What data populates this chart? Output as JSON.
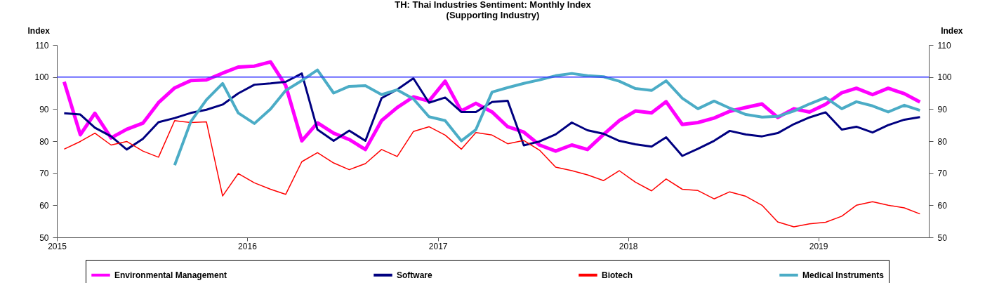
{
  "chart_data": {
    "type": "line",
    "title": "TH: Thai Industries Sentiment: Monthly Index\n(Supporting Industry)",
    "ylabel": "Index",
    "y2label": "Index",
    "x": [
      "2015-01-15",
      "2015-02-15",
      "2015-03-15",
      "2015-04-15",
      "2015-05-15",
      "2015-06-15",
      "2015-07-15",
      "2015-08-15",
      "2015-09-15",
      "2015-10-15",
      "2015-11-15",
      "2015-12-15",
      "2016-01-15",
      "2016-02-15",
      "2016-03-15",
      "2016-04-15",
      "2016-05-15",
      "2016-06-15",
      "2016-07-15",
      "2016-08-15",
      "2016-09-15",
      "2016-10-15",
      "2016-11-15",
      "2016-12-15",
      "2017-01-15",
      "2017-02-15",
      "2017-03-15",
      "2017-04-15",
      "2017-05-15",
      "2017-06-15",
      "2017-07-15",
      "2017-08-15",
      "2017-09-15",
      "2017-10-15",
      "2017-11-15",
      "2017-12-15",
      "2018-01-15",
      "2018-02-15",
      "2018-03-15",
      "2018-04-15",
      "2018-05-15",
      "2018-06-15",
      "2018-07-15",
      "2018-08-15",
      "2018-09-15",
      "2018-10-15",
      "2018-11-15",
      "2018-12-15",
      "2019-01-15",
      "2019-02-15",
      "2019-03-15",
      "2019-04-15",
      "2019-05-15",
      "2019-06-15",
      "2019-07-15"
    ],
    "series": [
      {
        "name": "Environmental Management",
        "color": "#ff00ff",
        "values": [
          98.5,
          82.0,
          88.7,
          81.0,
          83.7,
          85.6,
          92.0,
          96.6,
          98.9,
          99.1,
          101.2,
          103.1,
          103.4,
          104.7,
          97.4,
          80.1,
          85.7,
          82.5,
          80.5,
          77.4,
          86.4,
          90.5,
          93.8,
          92.5,
          98.7,
          89.4,
          91.8,
          89.1,
          84.5,
          82.8,
          78.8,
          76.9,
          78.8,
          77.4,
          82.1,
          86.4,
          89.4,
          88.8,
          92.3,
          85.2,
          85.8,
          87.2,
          89.3,
          90.5,
          91.6,
          87.4,
          90.1,
          89.1,
          91.5,
          95.1,
          96.5,
          94.5,
          96.5,
          94.8,
          92.2
        ]
      },
      {
        "name": "Software",
        "color": "#000080",
        "values": [
          88.7,
          88.3,
          84.2,
          81.5,
          77.4,
          80.7,
          85.9,
          87.2,
          88.8,
          89.8,
          91.4,
          94.9,
          97.6,
          98.0,
          98.5,
          101.1,
          83.6,
          80.1,
          83.3,
          80.1,
          93.4,
          96.1,
          99.6,
          92.0,
          93.6,
          89.1,
          89.1,
          92.2,
          92.6,
          78.7,
          79.9,
          82.1,
          85.8,
          83.4,
          82.3,
          80.1,
          79.0,
          78.3,
          81.2,
          75.4,
          77.6,
          80.1,
          83.2,
          82.1,
          81.5,
          82.5,
          85.3,
          87.4,
          89.0,
          83.6,
          84.5,
          82.7,
          85.0,
          86.7,
          87.5
        ]
      },
      {
        "name": "Biotech",
        "color": "#ff0000",
        "values": [
          77.5,
          79.9,
          82.5,
          78.8,
          79.9,
          76.9,
          75.0,
          86.4,
          85.8,
          86.0,
          62.9,
          69.9,
          67.0,
          65.0,
          63.4,
          73.6,
          76.4,
          73.2,
          71.1,
          73.0,
          77.4,
          75.2,
          83.0,
          84.5,
          81.9,
          77.5,
          82.7,
          81.9,
          79.2,
          80.2,
          77.2,
          71.9,
          70.8,
          69.5,
          67.7,
          70.8,
          67.2,
          64.5,
          68.2,
          65.0,
          64.6,
          62.0,
          64.2,
          62.8,
          60.0,
          54.8,
          53.3,
          54.2,
          54.7,
          56.6,
          60.0,
          61.1,
          60.0,
          59.2,
          57.3
        ]
      },
      {
        "name": "Medical Instruments",
        "color": "#4bacc6",
        "values": [
          null,
          null,
          null,
          null,
          null,
          null,
          null,
          72.5,
          86.1,
          92.9,
          98.0,
          88.8,
          85.5,
          90.0,
          95.8,
          98.9,
          102.2,
          95.0,
          97.1,
          97.3,
          94.5,
          96.0,
          93.2,
          87.6,
          86.4,
          80.1,
          83.6,
          95.3,
          96.7,
          98.0,
          99.1,
          100.4,
          101.1,
          100.4,
          100.1,
          98.7,
          96.4,
          95.8,
          98.8,
          93.4,
          90.1,
          92.5,
          90.3,
          88.3,
          87.5,
          87.7,
          89.4,
          91.6,
          93.6,
          90.1,
          92.3,
          91.0,
          89.1,
          91.2,
          89.6
        ]
      }
    ],
    "ref_lines": [
      {
        "axis": "y",
        "value": 100,
        "color": "#3333ff"
      }
    ],
    "xlim": [
      "2015-01-01",
      "2019-08-01"
    ],
    "xticks": [
      {
        "value": "2015-01-01",
        "label": "2015"
      },
      {
        "value": "2016-01-01",
        "label": "2016"
      },
      {
        "value": "2017-01-01",
        "label": "2017"
      },
      {
        "value": "2018-01-01",
        "label": "2018"
      },
      {
        "value": "2019-01-01",
        "label": "2019"
      }
    ],
    "ylim": [
      50,
      110
    ],
    "yticks": [
      50,
      60,
      70,
      80,
      90,
      100,
      110
    ],
    "y2lim": [
      50,
      110
    ],
    "y2ticks": [
      50,
      60,
      70,
      80,
      90,
      100,
      110
    ],
    "legend": "bottom",
    "grid": false
  }
}
